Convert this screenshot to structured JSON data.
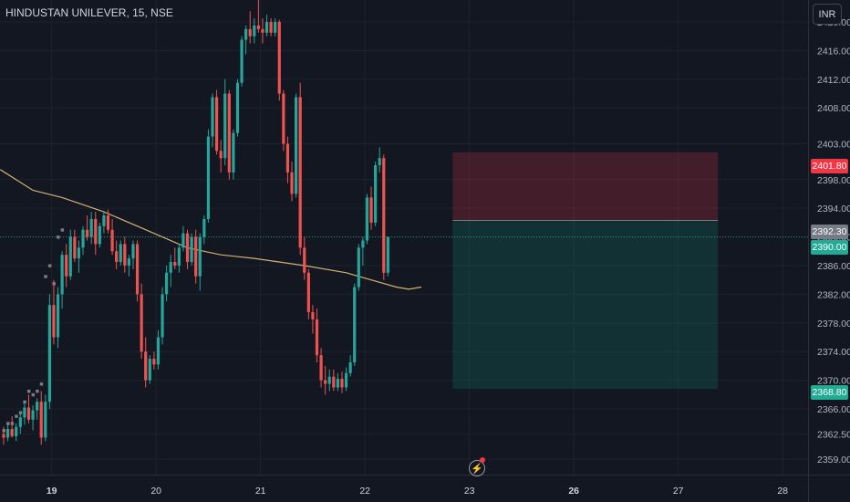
{
  "header": {
    "symbol": "HINDUSTAN UNILEVER, 15, NSE"
  },
  "currency_button": {
    "label": "INR"
  },
  "price_tags": {
    "stop": "2401.80",
    "entry": "2392.30",
    "last": "2390.00",
    "target": "2368.80"
  },
  "snapshot_icon": "lightning-bolt-icon",
  "colors": {
    "up": "#26a69a",
    "down": "#ef5350",
    "ma": "#e6c27a",
    "background": "#131722",
    "stop_zone": "#f23645",
    "target_zone": "#089981"
  },
  "chart_data": {
    "type": "candlestick",
    "y_range": [
      2357.3,
      2423.5
    ],
    "y_ticks": [
      2420,
      2416,
      2412,
      2408,
      2403,
      2398,
      2394,
      2390,
      2386,
      2382,
      2378,
      2374,
      2370,
      2366,
      2362.5,
      2359
    ],
    "x_labels": [
      {
        "label": "19",
        "slot": 11.5,
        "bold": true
      },
      {
        "label": "20",
        "slot": 36.5,
        "bold": false
      },
      {
        "label": "21",
        "slot": 61.5,
        "bold": false
      },
      {
        "label": "22",
        "slot": 86.5,
        "bold": false
      },
      {
        "label": "23",
        "slot": 111.5,
        "bold": false
      },
      {
        "label": "26",
        "slot": 136.5,
        "bold": true
      },
      {
        "label": "27",
        "slot": 161.5,
        "bold": false
      },
      {
        "label": "28",
        "slot": 186.5,
        "bold": false
      }
    ],
    "candles": [
      [
        2362.5,
        2363.5,
        2361.0,
        2362.0
      ],
      [
        2362.0,
        2364.0,
        2361.5,
        2363.2
      ],
      [
        2363.2,
        2365.0,
        2362.0,
        2362.2
      ],
      [
        2362.2,
        2364.0,
        2361.5,
        2363.5
      ],
      [
        2363.5,
        2365.5,
        2362.5,
        2364.8
      ],
      [
        2364.8,
        2367.0,
        2363.8,
        2366.2
      ],
      [
        2366.2,
        2368.0,
        2364.0,
        2364.5
      ],
      [
        2364.5,
        2366.5,
        2363.0,
        2365.8
      ],
      [
        2365.8,
        2367.5,
        2364.5,
        2367.0
      ],
      [
        2367.0,
        2368.5,
        2361.0,
        2362.0
      ],
      [
        2362.0,
        2368.0,
        2361.5,
        2367.0
      ],
      [
        2367.0,
        2382.0,
        2366.0,
        2380.5
      ],
      [
        2380.5,
        2384.0,
        2375.0,
        2376.0
      ],
      [
        2376.0,
        2383.0,
        2374.5,
        2382.0
      ],
      [
        2382.0,
        2388.0,
        2380.0,
        2387.5
      ],
      [
        2387.5,
        2389.0,
        2383.0,
        2384.5
      ],
      [
        2384.5,
        2391.0,
        2384.0,
        2390.0
      ],
      [
        2390.0,
        2391.0,
        2386.5,
        2387.0
      ],
      [
        2387.0,
        2389.5,
        2385.0,
        2388.5
      ],
      [
        2388.5,
        2391.5,
        2387.5,
        2391.0
      ],
      [
        2391.0,
        2393.0,
        2389.5,
        2390.0
      ],
      [
        2390.0,
        2393.5,
        2389.0,
        2392.5
      ],
      [
        2392.5,
        2393.5,
        2387.5,
        2389.0
      ],
      [
        2389.0,
        2392.0,
        2388.5,
        2391.5
      ],
      [
        2391.5,
        2393.5,
        2390.5,
        2393.0
      ],
      [
        2393.0,
        2393.8,
        2390.5,
        2391.0
      ],
      [
        2391.0,
        2392.5,
        2387.5,
        2388.0
      ],
      [
        2388.0,
        2389.5,
        2385.5,
        2386.5
      ],
      [
        2386.5,
        2389.5,
        2386.0,
        2389.0
      ],
      [
        2389.0,
        2390.0,
        2385.0,
        2386.0
      ],
      [
        2386.0,
        2387.5,
        2384.5,
        2387.0
      ],
      [
        2387.0,
        2389.5,
        2385.5,
        2389.0
      ],
      [
        2389.0,
        2389.5,
        2381.0,
        2382.0
      ],
      [
        2382.0,
        2383.5,
        2373.0,
        2374.0
      ],
      [
        2374.0,
        2376.0,
        2369.0,
        2370.0
      ],
      [
        2370.0,
        2373.5,
        2369.5,
        2373.0
      ],
      [
        2373.0,
        2374.0,
        2371.5,
        2372.2
      ],
      [
        2372.2,
        2377.0,
        2371.5,
        2376.0
      ],
      [
        2376.0,
        2383.0,
        2375.0,
        2382.0
      ],
      [
        2382.0,
        2386.0,
        2381.0,
        2385.0
      ],
      [
        2385.0,
        2387.5,
        2383.0,
        2386.5
      ],
      [
        2386.5,
        2388.5,
        2385.5,
        2386.0
      ],
      [
        2386.0,
        2389.0,
        2385.0,
        2388.5
      ],
      [
        2388.5,
        2391.5,
        2388.0,
        2390.5
      ],
      [
        2390.5,
        2391.0,
        2385.5,
        2386.5
      ],
      [
        2386.5,
        2390.5,
        2386.0,
        2390.0
      ],
      [
        2390.0,
        2391.0,
        2383.5,
        2384.5
      ],
      [
        2384.5,
        2390.5,
        2382.5,
        2390.0
      ],
      [
        2390.0,
        2393.0,
        2389.0,
        2392.5
      ],
      [
        2392.5,
        2405.0,
        2392.0,
        2404.0
      ],
      [
        2404.0,
        2410.0,
        2402.5,
        2409.5
      ],
      [
        2409.5,
        2410.5,
        2401.5,
        2402.0
      ],
      [
        2402.0,
        2403.5,
        2399.0,
        2401.0
      ],
      [
        2401.0,
        2412.0,
        2400.0,
        2410.0
      ],
      [
        2410.0,
        2410.5,
        2398.0,
        2399.0
      ],
      [
        2399.0,
        2405.0,
        2398.0,
        2404.5
      ],
      [
        2404.5,
        2412.0,
        2404.0,
        2411.5
      ],
      [
        2411.5,
        2418.0,
        2411.0,
        2417.5
      ],
      [
        2417.5,
        2419.5,
        2415.5,
        2419.0
      ],
      [
        2419.0,
        2421.5,
        2417.0,
        2418.0
      ],
      [
        2418.0,
        2420.5,
        2417.0,
        2419.5
      ],
      [
        2419.5,
        2423.5,
        2418.5,
        2419.0
      ],
      [
        2419.0,
        2420.5,
        2417.0,
        2418.5
      ],
      [
        2418.5,
        2421.0,
        2418.0,
        2420.0
      ],
      [
        2420.0,
        2420.5,
        2418.0,
        2418.5
      ],
      [
        2418.5,
        2420.5,
        2418.0,
        2420.0
      ],
      [
        2420.0,
        2420.3,
        2409.0,
        2410.0
      ],
      [
        2410.0,
        2410.5,
        2402.0,
        2403.0
      ],
      [
        2403.0,
        2404.0,
        2397.5,
        2399.0
      ],
      [
        2399.0,
        2400.5,
        2395.0,
        2396.0
      ],
      [
        2396.0,
        2410.0,
        2395.5,
        2409.5
      ],
      [
        2409.5,
        2411.5,
        2387.5,
        2388.5
      ],
      [
        2388.5,
        2390.0,
        2384.0,
        2385.0
      ],
      [
        2385.0,
        2385.5,
        2378.5,
        2379.5
      ],
      [
        2379.5,
        2380.5,
        2376.5,
        2378.5
      ],
      [
        2378.5,
        2380.0,
        2372.5,
        2373.5
      ],
      [
        2373.5,
        2374.5,
        2369.0,
        2370.0
      ],
      [
        2370.0,
        2372.0,
        2368.0,
        2369.5
      ],
      [
        2369.5,
        2371.5,
        2368.5,
        2370.5
      ],
      [
        2370.5,
        2371.5,
        2368.5,
        2369.0
      ],
      [
        2369.0,
        2371.0,
        2368.5,
        2370.2
      ],
      [
        2370.2,
        2371.2,
        2368.2,
        2369.0
      ],
      [
        2369.0,
        2371.8,
        2368.5,
        2371.0
      ],
      [
        2371.0,
        2373.5,
        2370.5,
        2372.5
      ],
      [
        2372.5,
        2383.5,
        2372.0,
        2383.0
      ],
      [
        2383.0,
        2389.0,
        2382.5,
        2388.5
      ],
      [
        2388.5,
        2390.0,
        2386.0,
        2389.5
      ],
      [
        2389.5,
        2396.0,
        2389.0,
        2395.5
      ],
      [
        2395.5,
        2397.0,
        2391.0,
        2392.0
      ],
      [
        2392.0,
        2400.5,
        2391.5,
        2400.0
      ],
      [
        2400.0,
        2402.5,
        2399.0,
        2401.0
      ],
      [
        2401.0,
        2401.5,
        2384.0,
        2385.0
      ],
      [
        2385.0,
        2390.0,
        2384.5,
        2390.0
      ]
    ],
    "moving_average": [
      [
        -0.8,
        2399.4
      ],
      [
        7,
        2396.5
      ],
      [
        14,
        2395.5
      ],
      [
        24,
        2393.5
      ],
      [
        34,
        2391.0
      ],
      [
        44,
        2388.5
      ],
      [
        52,
        2387.5
      ],
      [
        60,
        2387.0
      ],
      [
        72,
        2386.0
      ],
      [
        82,
        2385.0
      ],
      [
        88,
        2384.0
      ],
      [
        94,
        2383.0
      ],
      [
        97,
        2382.7
      ],
      [
        100,
        2383.0
      ]
    ],
    "ghost_markers": [
      [
        0,
        2363.0
      ],
      [
        1,
        2364.0
      ],
      [
        2,
        2364.0
      ],
      [
        3,
        2365.0
      ],
      [
        4,
        2365.5
      ],
      [
        5,
        2367.0
      ],
      [
        6,
        2368.5
      ],
      [
        7,
        2368.0
      ],
      [
        8,
        2368.5
      ],
      [
        9,
        2369.5
      ],
      [
        10,
        2384.5
      ],
      [
        11,
        2386.0
      ],
      [
        12,
        2383.5
      ],
      [
        13,
        2390.0
      ],
      [
        14,
        2391.0
      ]
    ],
    "position": {
      "slot_start": 107.5,
      "slot_end": 171,
      "stop": 2401.8,
      "entry": 2392.3,
      "target": 2368.8
    },
    "last_price_line": 2390.0
  }
}
